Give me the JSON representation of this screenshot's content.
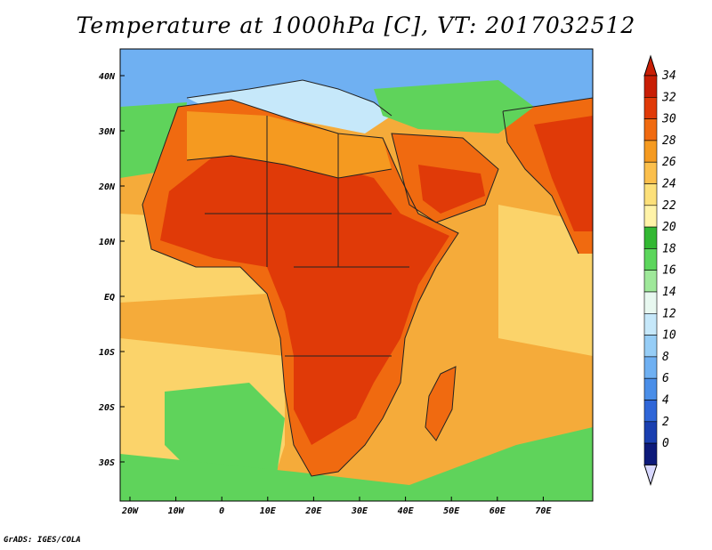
{
  "title": "Temperature at 1000hPa [C], VT: 2017032512",
  "credit": "GrADS: IGES/COLA",
  "lat_labels": [
    "40N",
    "30N",
    "20N",
    "10N",
    "EQ",
    "10S",
    "20S",
    "30S"
  ],
  "lon_labels": [
    "20W",
    "10W",
    "0",
    "10E",
    "20E",
    "30E",
    "40E",
    "50E",
    "60E",
    "70E"
  ],
  "colorbar": {
    "labels": [
      "0",
      "2",
      "4",
      "6",
      "8",
      "10",
      "12",
      "14",
      "16",
      "18",
      "20",
      "22",
      "24",
      "26",
      "28",
      "30",
      "32",
      "34"
    ],
    "colors": [
      "#0d1a7a",
      "#1a3fb0",
      "#2f66d8",
      "#4a8ee8",
      "#6fb0f2",
      "#96cdf6",
      "#c6e8fa",
      "#e8f8f0",
      "#9fe89a",
      "#5cd65c",
      "#33b833",
      "#fff3a8",
      "#fce07a",
      "#fbbf4c",
      "#f59a20",
      "#f06a10",
      "#e03a08",
      "#c81e05"
    ],
    "under_color": "#d8d8ff",
    "over_color": "#c81e05"
  },
  "colors": {
    "ocean_warm": "#f5ab3a",
    "ocean_mid": "#fbd36a",
    "ocean_cool": "#5fd35b",
    "land_hot": "#e03a08",
    "land_warm": "#f06a10",
    "land_mild": "#f59a20",
    "mediterranean": "#c6e8fa",
    "europe": "#6fb0f2"
  }
}
